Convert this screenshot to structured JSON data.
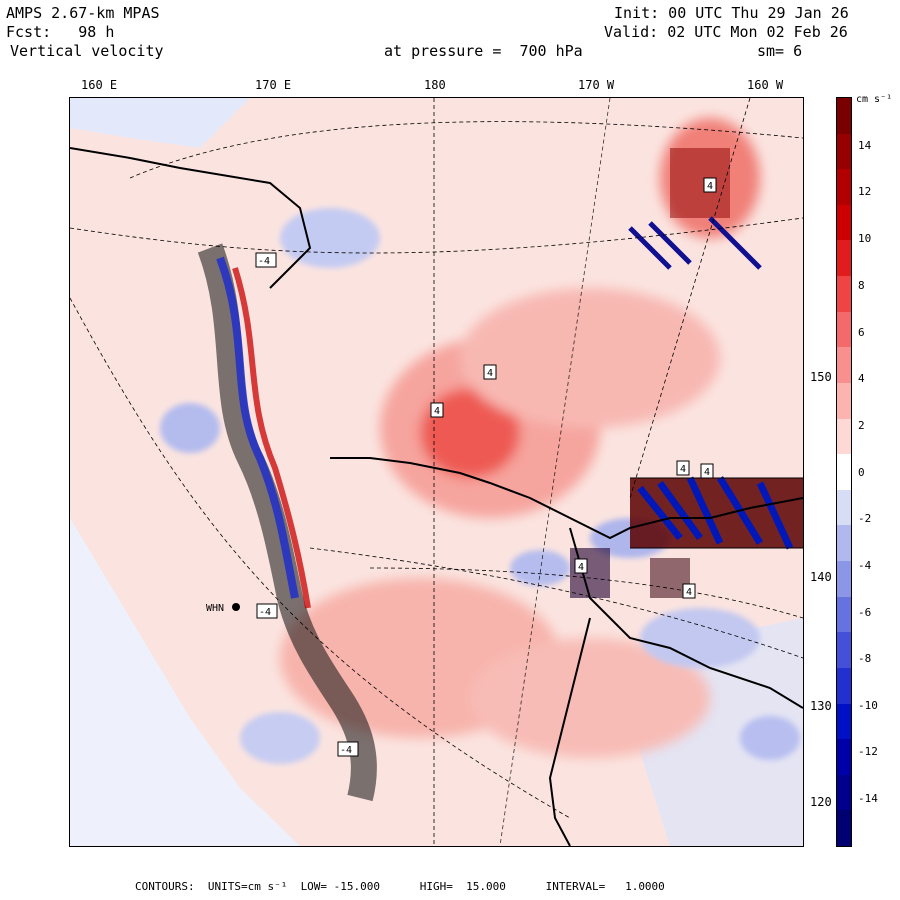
{
  "header": {
    "model": "AMPS 2.67-km MPAS",
    "forecast": "Fcst:   98 h",
    "field": "Vertical velocity",
    "init": "Init: 00 UTC Thu 29 Jan 26",
    "valid": "Valid: 02 UTC Mon 02 Feb 26",
    "level": "at pressure =  700 hPa",
    "smoothing": "sm= 6"
  },
  "map": {
    "lon_labels": [
      "160 E",
      "170 E",
      "180",
      "170 W",
      "160 W"
    ],
    "lat_labels": [
      "150 W",
      "140 W",
      "130 W",
      "120 W"
    ],
    "station_label": "WHN",
    "contour_labels": [
      "4",
      "4",
      "4",
      "4",
      "4",
      "4",
      "-4",
      "-4",
      "-4",
      "4"
    ]
  },
  "colorbar": {
    "units": "cm s⁻¹",
    "ticks": [
      "14",
      "12",
      "10",
      "8",
      "6",
      "4",
      "2",
      "0",
      "-2",
      "-4",
      "-6",
      "-8",
      "-10",
      "-12",
      "-14"
    ],
    "colors": [
      "#7a0000",
      "#960000",
      "#b20000",
      "#cc0000",
      "#e01c1c",
      "#ee4444",
      "#f46a6a",
      "#f89090",
      "#fbb4b0",
      "#fdd8d4",
      "#ffffff",
      "#d8ddf6",
      "#b0b8ee",
      "#8c96e6",
      "#6672de",
      "#4450d8",
      "#2230d0",
      "#0010c4",
      "#0000a8",
      "#00008c",
      "#000070"
    ]
  },
  "footer": {
    "text": "CONTOURS:  UNITS=cm s⁻¹  LOW= -15.000      HIGH=  15.000      INTERVAL=   1.0000"
  }
}
